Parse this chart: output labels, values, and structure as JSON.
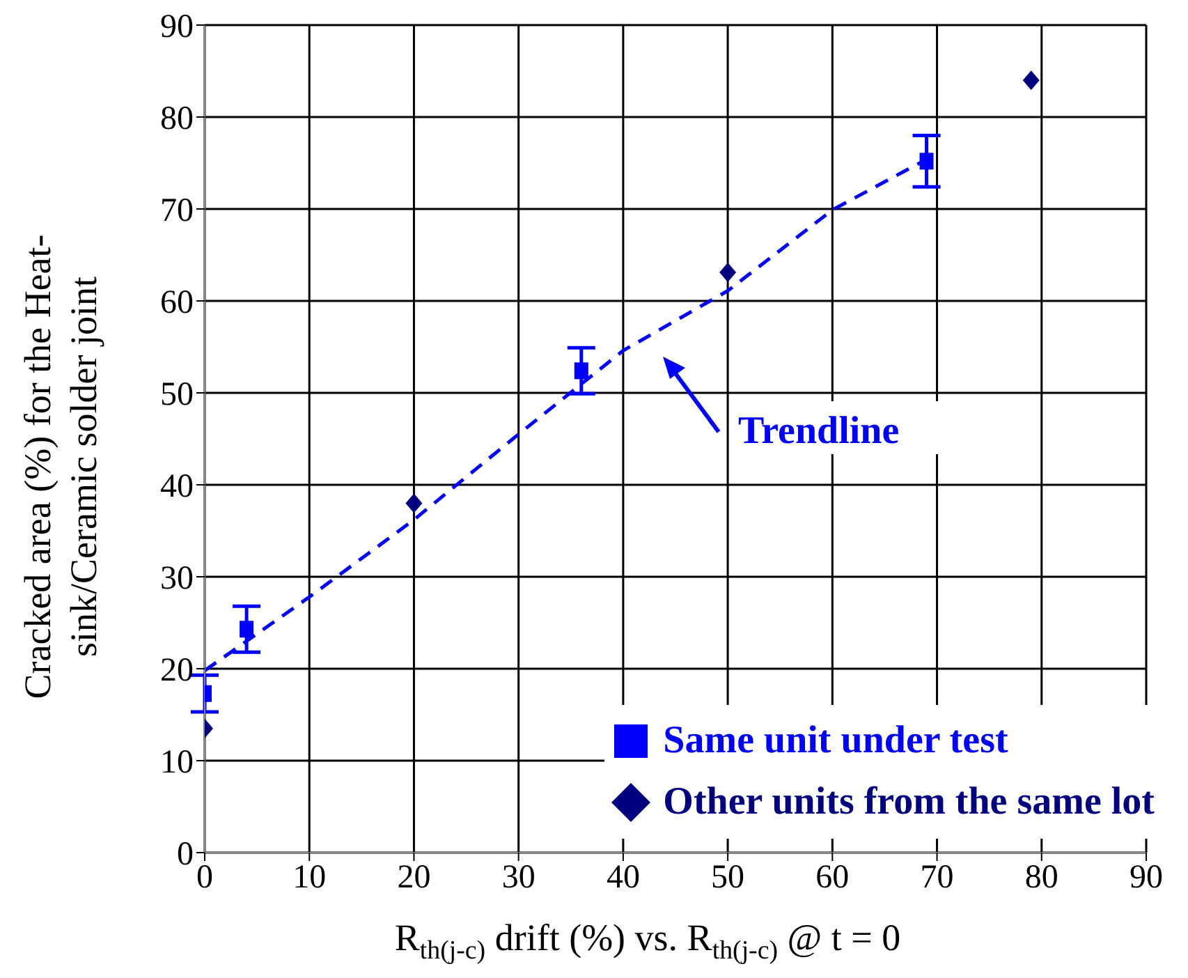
{
  "chart_data": {
    "type": "scatter",
    "xlabel": "R$_{th(j-c)}$ drift (%) vs. R$_{th(j-c)}$ @ t = 0",
    "ylabel": "Cracked area (%) for the Heat-sink/Ceramic solder joint",
    "xlim": [
      0,
      90
    ],
    "xticks": [
      0,
      10,
      20,
      30,
      40,
      50,
      60,
      70,
      80,
      90
    ],
    "ylim": [
      0,
      90
    ],
    "yticks": [
      0,
      10,
      20,
      30,
      40,
      50,
      60,
      70,
      80,
      90
    ],
    "grid": true,
    "legend": "bottom right",
    "annotations": [
      "Trendline"
    ],
    "series": [
      {
        "type": "line",
        "color": "#0000ff",
        "line_style": "dashed",
        "marker": "none",
        "x": [
          0,
          10,
          20,
          30,
          40,
          50,
          60,
          69
        ],
        "values": [
          19.8,
          27.8,
          36.2,
          45.5,
          54.6,
          61.1,
          69.9,
          75.4
        ]
      },
      {
        "name": "Same unit under test",
        "color": "#0000ff",
        "marker": "square",
        "x": [
          0,
          4,
          36,
          69
        ],
        "values": [
          17.3,
          24.3,
          52.4,
          75.2
        ],
        "errors": [
          2,
          2.5,
          2.5,
          2.8
        ]
      },
      {
        "name": "Other units from the same lot",
        "color": "#000080",
        "marker": "diamond",
        "x": [
          0,
          20,
          50,
          79
        ],
        "values": [
          13.5,
          38,
          63.1,
          84
        ]
      }
    ]
  }
}
